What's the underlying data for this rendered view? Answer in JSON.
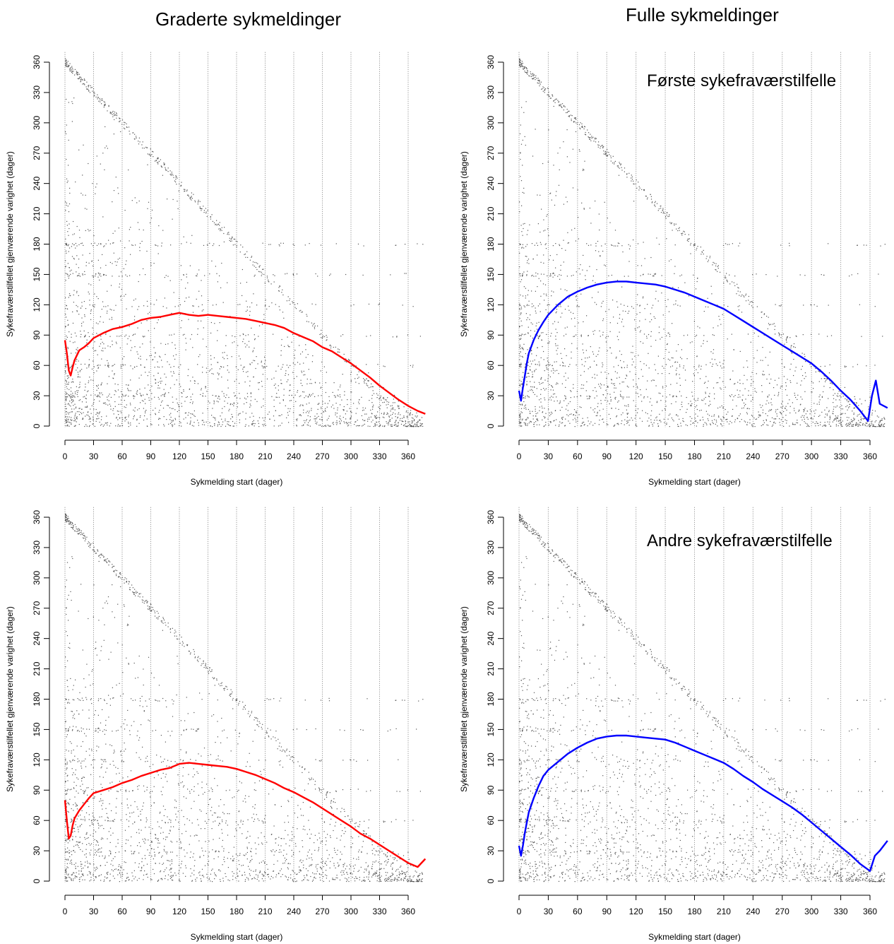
{
  "titles": {
    "left_column": "Graderte sykmeldinger",
    "right_column": "Fulle sykmeldinger"
  },
  "row_labels": {
    "top": "Første sykefraværstilfelle",
    "bottom": "Andre sykefraværstilfelle"
  },
  "colors": {
    "graded_line": "#ff0000",
    "full_line": "#0000ff",
    "points": "#555555",
    "grid": "#808080"
  },
  "chart_data": [
    {
      "id": "graded-first",
      "type": "scatter",
      "title": "Graderte sykmeldinger",
      "annotation": "",
      "xlabel": "Sykmelding start (dager)",
      "ylabel": "Sykefraværstilfellet gjenværende varighet (dager)",
      "xlim": [
        0,
        380
      ],
      "ylim": [
        0,
        370
      ],
      "xticks": [
        0,
        30,
        60,
        90,
        120,
        150,
        180,
        210,
        240,
        270,
        300,
        330,
        360
      ],
      "yticks": [
        0,
        30,
        60,
        90,
        120,
        150,
        180,
        210,
        240,
        270,
        300,
        330,
        360
      ],
      "grid": "vertical dotted lines at x ticks",
      "line_color": "#ff0000",
      "line": {
        "x": [
          0,
          2,
          4,
          6,
          8,
          10,
          15,
          20,
          25,
          30,
          40,
          50,
          60,
          70,
          80,
          90,
          100,
          110,
          120,
          130,
          140,
          150,
          160,
          170,
          180,
          190,
          200,
          210,
          220,
          230,
          240,
          250,
          260,
          270,
          280,
          290,
          300,
          310,
          320,
          330,
          340,
          350,
          360,
          370,
          378
        ],
        "y": [
          85,
          72,
          55,
          50,
          58,
          65,
          75,
          78,
          82,
          87,
          92,
          96,
          98,
          101,
          105,
          107,
          108,
          110,
          112,
          110,
          109,
          110,
          109,
          108,
          107,
          106,
          104,
          102,
          100,
          97,
          92,
          88,
          84,
          78,
          74,
          68,
          62,
          55,
          48,
          40,
          33,
          26,
          20,
          15,
          12
        ]
      }
    },
    {
      "id": "full-first",
      "type": "scatter",
      "title": "Fulle sykmeldinger",
      "annotation": "Første sykefraværstilfelle",
      "xlabel": "Sykmelding start (dager)",
      "ylabel": "Sykefraværstilfellet gjenværende varighet (dager)",
      "xlim": [
        0,
        380
      ],
      "ylim": [
        0,
        370
      ],
      "xticks": [
        0,
        30,
        60,
        90,
        120,
        150,
        180,
        210,
        240,
        270,
        300,
        330,
        360
      ],
      "yticks": [
        0,
        30,
        60,
        90,
        120,
        150,
        180,
        210,
        240,
        270,
        300,
        330,
        360
      ],
      "grid": "vertical dotted lines at x ticks",
      "line_color": "#0000ff",
      "line": {
        "x": [
          0,
          2,
          4,
          6,
          8,
          10,
          15,
          20,
          25,
          30,
          40,
          50,
          60,
          70,
          80,
          90,
          100,
          110,
          120,
          130,
          140,
          150,
          160,
          170,
          180,
          190,
          200,
          210,
          220,
          230,
          240,
          250,
          260,
          270,
          280,
          290,
          300,
          310,
          320,
          330,
          340,
          350,
          358,
          362,
          366,
          370,
          378
        ],
        "y": [
          35,
          25,
          38,
          50,
          62,
          72,
          85,
          95,
          103,
          110,
          120,
          128,
          133,
          137,
          140,
          142,
          143,
          143,
          142,
          141,
          140,
          138,
          135,
          132,
          128,
          124,
          120,
          116,
          110,
          104,
          98,
          92,
          86,
          80,
          74,
          68,
          62,
          54,
          45,
          35,
          26,
          15,
          5,
          30,
          45,
          22,
          18
        ]
      }
    },
    {
      "id": "graded-second",
      "type": "scatter",
      "title": "",
      "annotation": "",
      "xlabel": "Sykmelding start (dager)",
      "ylabel": "Sykefraværstilfellet gjenværende varighet (dager)",
      "xlim": [
        0,
        380
      ],
      "ylim": [
        0,
        370
      ],
      "xticks": [
        0,
        30,
        60,
        90,
        120,
        150,
        180,
        210,
        240,
        270,
        300,
        330,
        360
      ],
      "yticks": [
        0,
        30,
        60,
        90,
        120,
        150,
        180,
        210,
        240,
        270,
        300,
        330,
        360
      ],
      "grid": "vertical dotted lines at x ticks",
      "line_color": "#ff0000",
      "line": {
        "x": [
          0,
          2,
          4,
          6,
          8,
          10,
          15,
          20,
          25,
          30,
          40,
          50,
          60,
          70,
          80,
          90,
          100,
          110,
          120,
          130,
          140,
          150,
          160,
          170,
          180,
          190,
          200,
          210,
          220,
          230,
          240,
          250,
          260,
          270,
          280,
          290,
          300,
          310,
          320,
          330,
          340,
          350,
          360,
          370,
          378
        ],
        "y": [
          80,
          60,
          42,
          45,
          55,
          62,
          70,
          76,
          82,
          87,
          90,
          93,
          97,
          100,
          104,
          107,
          110,
          112,
          116,
          117,
          116,
          115,
          114,
          113,
          111,
          108,
          105,
          101,
          97,
          92,
          88,
          83,
          78,
          72,
          66,
          60,
          54,
          47,
          42,
          36,
          30,
          24,
          18,
          14,
          22
        ]
      }
    },
    {
      "id": "full-second",
      "type": "scatter",
      "title": "",
      "annotation": "Andre sykefraværstilfelle",
      "xlabel": "Sykmelding start (dager)",
      "ylabel": "Sykefraværstilfellet gjenværende varighet (dager)",
      "xlim": [
        0,
        380
      ],
      "ylim": [
        0,
        370
      ],
      "xticks": [
        0,
        30,
        60,
        90,
        120,
        150,
        180,
        210,
        240,
        270,
        300,
        330,
        360
      ],
      "yticks": [
        0,
        30,
        60,
        90,
        120,
        150,
        180,
        210,
        240,
        270,
        300,
        330,
        360
      ],
      "grid": "vertical dotted lines at x ticks",
      "line_color": "#0000ff",
      "line": {
        "x": [
          0,
          2,
          4,
          6,
          8,
          10,
          15,
          20,
          25,
          30,
          40,
          50,
          60,
          70,
          80,
          90,
          100,
          110,
          120,
          130,
          140,
          150,
          160,
          170,
          180,
          190,
          200,
          210,
          220,
          230,
          240,
          250,
          260,
          270,
          280,
          290,
          300,
          310,
          320,
          330,
          340,
          350,
          360,
          365,
          370,
          378
        ],
        "y": [
          35,
          25,
          35,
          48,
          58,
          68,
          82,
          94,
          104,
          110,
          118,
          126,
          132,
          137,
          141,
          143,
          144,
          144,
          143,
          142,
          141,
          140,
          137,
          133,
          129,
          125,
          121,
          117,
          111,
          104,
          98,
          91,
          85,
          79,
          73,
          66,
          58,
          50,
          42,
          34,
          26,
          17,
          10,
          25,
          30,
          40
        ]
      }
    }
  ]
}
